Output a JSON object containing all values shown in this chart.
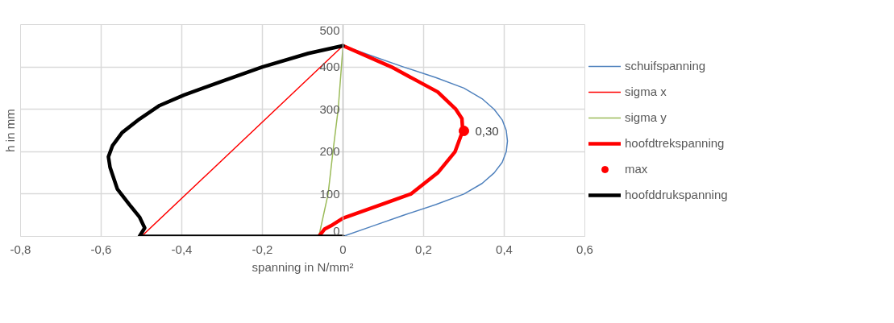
{
  "chart_data": {
    "type": "line",
    "xlabel": "spanning in N/mm²",
    "ylabel": "h in mm",
    "xlim": [
      -0.8,
      0.6
    ],
    "ylim": [
      0,
      500
    ],
    "xticks": [
      {
        "value": -0.8,
        "label": "-0,8"
      },
      {
        "value": -0.6,
        "label": "-0,6"
      },
      {
        "value": -0.4,
        "label": "-0,4"
      },
      {
        "value": -0.2,
        "label": "-0,2"
      },
      0,
      {
        "value": 0.2,
        "label": "0,2"
      },
      {
        "value": 0.4,
        "label": "0,4"
      },
      {
        "value": 0.6,
        "label": "0,6"
      }
    ],
    "yticks": [
      0,
      100,
      200,
      300,
      400,
      500
    ],
    "grid": true,
    "legend": "right",
    "annotations": [
      {
        "text": "0,30",
        "x": 0.3,
        "y": 249
      }
    ],
    "series": [
      {
        "name": "schuifspanning",
        "color": "#4f81bd",
        "x": [
          0,
          0.075,
          0.15,
          0.23,
          0.3,
          0.345,
          0.375,
          0.395,
          0.405,
          0.408,
          0.405,
          0.395,
          0.375,
          0.345,
          0.3,
          0.23,
          0.15,
          0.075,
          0
        ],
        "values": [
          0,
          25,
          50,
          75,
          100,
          125,
          150,
          175,
          200,
          225,
          250,
          275,
          300,
          325,
          350,
          375,
          400,
          425,
          450
        ]
      },
      {
        "name": "sigma x",
        "color": "#ff0000",
        "x": [
          -0.5,
          0
        ],
        "values": [
          0,
          450
        ]
      },
      {
        "name": "sigma y",
        "color": "#9bbb59",
        "x": [
          -0.06,
          -0.037,
          -0.025,
          -0.012,
          -0.004,
          0
        ],
        "values": [
          0,
          100,
          200,
          300,
          400,
          450
        ]
      },
      {
        "name": "hoofdtrekspanning",
        "color": "#ff0000",
        "x": [
          -0.06,
          -0.046,
          -0.03,
          0,
          0.08,
          0.168,
          0.235,
          0.278,
          0.297,
          0.295,
          0.28,
          0.235,
          0.12,
          0
        ],
        "values": [
          0,
          17,
          25,
          43,
          70,
          100,
          150,
          200,
          249,
          278,
          300,
          341,
          400,
          450
        ]
      },
      {
        "name": "max",
        "type": "scatter",
        "marker": "circle",
        "color": "#ff0000",
        "x": [
          0.3
        ],
        "values": [
          249
        ]
      },
      {
        "name": "hoofddrukspanning",
        "color": "#000000",
        "x": [
          0,
          -0.505,
          -0.492,
          -0.505,
          -0.529,
          -0.56,
          -0.578,
          -0.582,
          -0.572,
          -0.548,
          -0.505,
          -0.455,
          -0.394,
          -0.3,
          -0.2,
          -0.086,
          0
        ],
        "values": [
          0,
          0,
          20,
          46,
          74,
          112,
          163,
          188,
          214,
          245,
          277,
          309,
          334,
          366,
          400,
          432,
          450
        ]
      }
    ]
  }
}
